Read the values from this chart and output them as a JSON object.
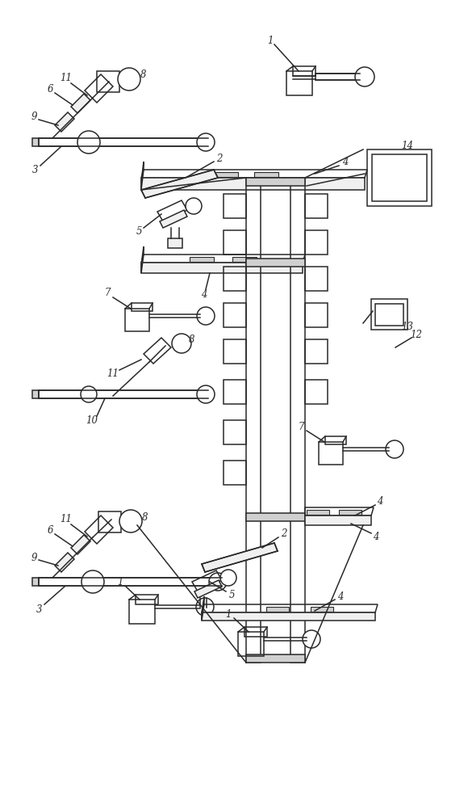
{
  "fig_width": 5.8,
  "fig_height": 10.0,
  "dpi": 100,
  "bg_color": "#ffffff",
  "line_color": "#2a2a2a",
  "line_width": 1.1,
  "label_fontsize": 8.5,
  "gray_fill": "#d0d0d0",
  "light_fill": "#f0f0f0"
}
